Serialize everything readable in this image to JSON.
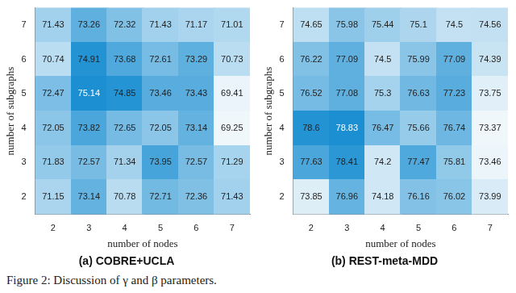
{
  "caption": "Figure 2: Discussion of γ and β parameters.",
  "chart_data": [
    {
      "type": "heatmap",
      "title": "(a) COBRE+UCLA",
      "x_label": "number of nodes",
      "y_label": "number of subgraphs",
      "x": [
        2,
        3,
        4,
        5,
        6,
        7
      ],
      "y": [
        7,
        6,
        5,
        4,
        3,
        2
      ],
      "cells": [
        [
          71.43,
          73.26,
          72.32,
          71.43,
          71.17,
          71.01
        ],
        [
          70.74,
          74.91,
          73.68,
          72.61,
          73.29,
          70.73
        ],
        [
          72.47,
          75.14,
          74.85,
          73.46,
          73.43,
          69.41
        ],
        [
          72.05,
          73.82,
          72.65,
          72.05,
          73.14,
          69.25
        ],
        [
          71.83,
          72.57,
          71.34,
          73.95,
          72.57,
          71.29
        ],
        [
          71.15,
          73.14,
          70.78,
          72.71,
          72.36,
          71.43
        ]
      ],
      "xlim": [
        1.5,
        7.5
      ],
      "xticks": [
        2,
        3,
        4,
        5,
        6,
        7
      ],
      "ylim": [
        1.5,
        7.5
      ],
      "yticks": [
        2,
        3,
        4,
        5,
        6,
        7
      ],
      "color": "#1b8fd2",
      "data_labels": true,
      "grid": false
    },
    {
      "type": "heatmap",
      "title": "(b) REST-meta-MDD",
      "x_label": "number of nodes",
      "y_label": "number of subgraphs",
      "x": [
        2,
        3,
        4,
        5,
        6,
        7
      ],
      "y": [
        7,
        6,
        5,
        4,
        3,
        2
      ],
      "cells": [
        [
          74.65,
          75.98,
          75.44,
          75.1,
          74.5,
          74.56
        ],
        [
          76.22,
          77.09,
          74.5,
          75.99,
          77.09,
          74.39
        ],
        [
          76.52,
          77.08,
          75.3,
          76.63,
          77.23,
          73.75
        ],
        [
          78.6,
          78.83,
          76.47,
          75.66,
          76.74,
          73.37
        ],
        [
          77.63,
          78.41,
          74.2,
          77.47,
          75.81,
          73.46
        ],
        [
          73.85,
          76.96,
          74.18,
          76.16,
          76.02,
          73.99
        ]
      ],
      "xlim": [
        1.5,
        7.5
      ],
      "xticks": [
        2,
        3,
        4,
        5,
        6,
        7
      ],
      "ylim": [
        1.5,
        7.5
      ],
      "yticks": [
        2,
        3,
        4,
        5,
        6,
        7
      ],
      "color": "#1b8fd2",
      "data_labels": true,
      "grid": false
    }
  ]
}
